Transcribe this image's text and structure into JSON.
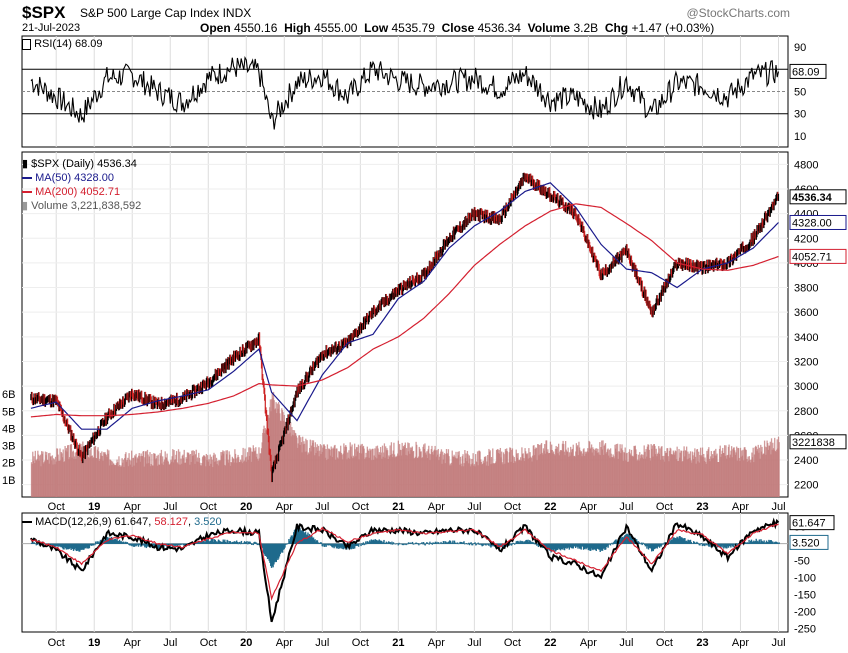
{
  "header": {
    "symbol": "$SPX",
    "name": "S&P 500 Large Cap Index",
    "exchange": "INDX",
    "date": "21-Jul-2023",
    "watermark": "@StockCharts.com",
    "open_label": "Open",
    "open": "4550.16",
    "high_label": "High",
    "high": "4555.00",
    "low_label": "Low",
    "low": "4535.79",
    "close_label": "Close",
    "close": "4536.34",
    "volume_label": "Volume",
    "volume": "3.2B",
    "chg_label": "Chg",
    "chg": "+1.47 (+0.03%)"
  },
  "colors": {
    "price_up": "#000000",
    "price_down": "#cc2222",
    "ma50": "#1a1a8c",
    "ma200": "#d42030",
    "volume": "#c07878",
    "macd": "#000000",
    "signal": "#d42030",
    "histogram": "#1f6a8c"
  },
  "legends": {
    "rsi": "RSI(14) 68.09",
    "price": "$SPX (Daily) 4536.34",
    "ma50": "MA(50) 4328.00",
    "ma200": "MA(200) 4052.71",
    "volume": "Volume 3,221,838,592",
    "macd_prefix": "MACD(12,26,9)",
    "macd_val": "61.647",
    "macd_sig": "58.127",
    "macd_hist": "3.520"
  },
  "value_tags": {
    "rsi": "68.09",
    "close": "4536.34",
    "ma50": "4328.00",
    "ma200": "4052.71",
    "volume": "3221838",
    "macd": "61.647",
    "hist": "3.520"
  },
  "chart_data": [
    {
      "type": "line",
      "title": "RSI(14)",
      "ylim": [
        0,
        100
      ],
      "y_ticks": [
        90,
        70,
        50,
        30,
        10
      ],
      "x": [
        "2018-08",
        "2018-10",
        "2018-12",
        "2019-02",
        "2019-04",
        "2019-06",
        "2019-08",
        "2019-10",
        "2019-12",
        "2020-02",
        "2020-03",
        "2020-05",
        "2020-07",
        "2020-09",
        "2020-11",
        "2021-01",
        "2021-03",
        "2021-05",
        "2021-07",
        "2021-09",
        "2021-11",
        "2022-01",
        "2022-03",
        "2022-05",
        "2022-07",
        "2022-09",
        "2022-11",
        "2023-01",
        "2023-03",
        "2023-05",
        "2023-07"
      ],
      "series": [
        {
          "name": "RSI(14)",
          "values": [
            60,
            45,
            28,
            62,
            65,
            50,
            40,
            62,
            72,
            68,
            22,
            58,
            65,
            45,
            70,
            60,
            55,
            58,
            62,
            52,
            66,
            42,
            45,
            32,
            60,
            30,
            58,
            55,
            45,
            64,
            68
          ]
        }
      ]
    },
    {
      "type": "line",
      "title": "$SPX (Daily) 4536.34",
      "ylim": [
        2100,
        4900
      ],
      "y_ticks": [
        4800,
        4600,
        4400,
        4200,
        4000,
        3800,
        3600,
        3400,
        3200,
        3000,
        2800,
        2600,
        2400,
        2200
      ],
      "x_ticks": [
        "Oct",
        "19",
        "Apr",
        "Jul",
        "Oct",
        "20",
        "Apr",
        "Jul",
        "Oct",
        "21",
        "Apr",
        "Jul",
        "Oct",
        "22",
        "Apr",
        "Jul",
        "Oct",
        "23",
        "Apr",
        "Jul"
      ],
      "x": [
        "2018-08",
        "2018-10",
        "2018-12",
        "2019-02",
        "2019-04",
        "2019-06",
        "2019-08",
        "2019-10",
        "2019-12",
        "2020-02",
        "2020-03",
        "2020-05",
        "2020-07",
        "2020-09",
        "2020-11",
        "2021-01",
        "2021-03",
        "2021-05",
        "2021-07",
        "2021-09",
        "2021-11",
        "2022-01",
        "2022-03",
        "2022-05",
        "2022-07",
        "2022-09",
        "2022-11",
        "2023-01",
        "2023-03",
        "2023-05",
        "2023-07"
      ],
      "series": [
        {
          "name": "$SPX",
          "values": [
            2900,
            2880,
            2420,
            2750,
            2940,
            2850,
            2900,
            3030,
            3230,
            3380,
            2280,
            2950,
            3260,
            3350,
            3600,
            3780,
            3900,
            4200,
            4400,
            4350,
            4700,
            4550,
            4400,
            3900,
            4100,
            3600,
            4000,
            3960,
            4000,
            4200,
            4536
          ]
        },
        {
          "name": "MA(50)",
          "values": [
            2820,
            2870,
            2650,
            2650,
            2820,
            2880,
            2920,
            2970,
            3120,
            3300,
            2950,
            2720,
            3090,
            3350,
            3420,
            3710,
            3850,
            4120,
            4300,
            4420,
            4580,
            4650,
            4450,
            4150,
            3950,
            3920,
            3800,
            3950,
            4000,
            4120,
            4328
          ]
        },
        {
          "name": "MA(200)",
          "values": [
            2750,
            2770,
            2760,
            2760,
            2770,
            2790,
            2820,
            2860,
            2920,
            3020,
            3010,
            3000,
            3050,
            3150,
            3300,
            3400,
            3550,
            3750,
            3980,
            4150,
            4300,
            4420,
            4480,
            4450,
            4320,
            4180,
            4000,
            3950,
            3940,
            3980,
            4052
          ]
        }
      ]
    },
    {
      "type": "bar",
      "title": "Volume",
      "ylim": [
        0,
        7
      ],
      "y_ticks": [
        "6B",
        "5B",
        "4B",
        "3B",
        "2B",
        "1B"
      ],
      "x": [
        "2018-08",
        "2018-10",
        "2018-12",
        "2019-02",
        "2019-04",
        "2019-06",
        "2019-08",
        "2019-10",
        "2019-12",
        "2020-02",
        "2020-03",
        "2020-05",
        "2020-07",
        "2020-09",
        "2020-11",
        "2021-01",
        "2021-03",
        "2021-05",
        "2021-07",
        "2021-09",
        "2021-11",
        "2022-01",
        "2022-03",
        "2022-05",
        "2022-07",
        "2022-09",
        "2022-11",
        "2023-01",
        "2023-03",
        "2023-05",
        "2023-07"
      ],
      "series": [
        {
          "name": "Volume",
          "values": [
            2.2,
            2.4,
            2.8,
            2.3,
            2.2,
            2.3,
            2.4,
            2.2,
            2.3,
            2.6,
            5.8,
            3.2,
            2.6,
            2.7,
            2.6,
            2.8,
            2.7,
            2.3,
            2.2,
            2.4,
            2.4,
            2.9,
            2.8,
            2.9,
            2.5,
            2.6,
            2.5,
            2.4,
            2.6,
            2.5,
            3.2
          ]
        }
      ]
    },
    {
      "type": "line",
      "title": "MACD(12,26,9) 61.647, 58.127, 3.520",
      "ylim": [
        -260,
        90
      ],
      "y_ticks": [
        50,
        0,
        -50,
        -100,
        -150,
        -200,
        -250
      ],
      "x": [
        "2018-08",
        "2018-10",
        "2018-12",
        "2019-02",
        "2019-04",
        "2019-06",
        "2019-08",
        "2019-10",
        "2019-12",
        "2020-02",
        "2020-03",
        "2020-05",
        "2020-07",
        "2020-09",
        "2020-11",
        "2021-01",
        "2021-03",
        "2021-05",
        "2021-07",
        "2021-09",
        "2021-11",
        "2022-01",
        "2022-03",
        "2022-05",
        "2022-07",
        "2022-09",
        "2022-11",
        "2023-01",
        "2023-03",
        "2023-05",
        "2023-07"
      ],
      "series": [
        {
          "name": "MACD",
          "values": [
            15,
            -20,
            -80,
            30,
            20,
            -10,
            -15,
            25,
            40,
            30,
            -230,
            50,
            40,
            -10,
            40,
            40,
            30,
            40,
            40,
            -20,
            50,
            -40,
            -60,
            -100,
            50,
            -80,
            60,
            20,
            -40,
            40,
            62
          ]
        },
        {
          "name": "Signal",
          "values": [
            12,
            -10,
            -60,
            10,
            25,
            0,
            -10,
            15,
            35,
            30,
            -160,
            0,
            45,
            5,
            30,
            40,
            30,
            35,
            40,
            -10,
            40,
            -20,
            -50,
            -80,
            20,
            -60,
            40,
            25,
            -30,
            30,
            58
          ]
        },
        {
          "name": "Histogram",
          "values": [
            3,
            -10,
            -20,
            20,
            -5,
            -10,
            -5,
            10,
            5,
            0,
            -70,
            50,
            -5,
            -15,
            10,
            0,
            0,
            5,
            0,
            -10,
            10,
            -20,
            -10,
            -20,
            30,
            -20,
            20,
            -5,
            -10,
            10,
            3.5
          ]
        }
      ]
    }
  ]
}
